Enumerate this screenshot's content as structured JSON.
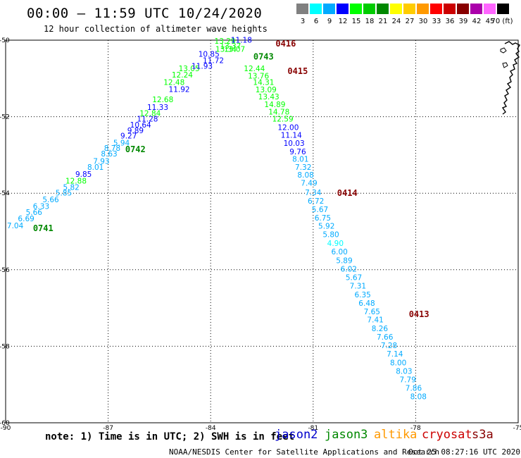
{
  "title": "00:00 – 11:59 UTC 10/24/2020",
  "subtitle": "12 hour collection of altimeter wave heights",
  "scale": {
    "labels": [
      "3",
      "6",
      "9",
      "12",
      "15",
      "18",
      "21",
      "24",
      "27",
      "30",
      "33",
      "36",
      "39",
      "42",
      "45",
      "70 (ft)"
    ],
    "colors": [
      "#808080",
      "#00ffff",
      "#00aaff",
      "#0000ff",
      "#00ff00",
      "#00cc00",
      "#008800",
      "#ffff00",
      "#ffcc00",
      "#ff9900",
      "#ff0000",
      "#cc0000",
      "#880000",
      "#aa00aa",
      "#ff66ff",
      "#000000"
    ]
  },
  "chart_data": {
    "type": "scatter",
    "xlim": [
      -90,
      -75
    ],
    "ylim": [
      -60,
      -50
    ],
    "xticks": [
      -90,
      -87,
      -84,
      -81,
      -78,
      -75
    ],
    "yticks": [
      -50,
      -52,
      -54,
      -56,
      -58,
      -60
    ],
    "grid": true,
    "passes": [
      {
        "label": "0741",
        "color": "#008800",
        "label_lon": -89.2,
        "label_lat": -54.92,
        "points": [
          {
            "lon": -89.72,
            "lat": -54.92,
            "v": "7.04",
            "c": "#00aaff"
          },
          {
            "lon": -89.4,
            "lat": -54.73,
            "v": "6.69",
            "c": "#00aaff"
          },
          {
            "lon": -89.17,
            "lat": -54.57,
            "v": "5.66",
            "c": "#00aaff"
          },
          {
            "lon": -88.96,
            "lat": -54.41,
            "v": "6.33",
            "c": "#00aaff"
          },
          {
            "lon": -88.68,
            "lat": -54.24,
            "v": "5.66",
            "c": "#00aaff"
          },
          {
            "lon": -88.3,
            "lat": -54.06,
            "v": "5.85",
            "c": "#00aaff"
          },
          {
            "lon": -88.08,
            "lat": -53.91,
            "v": "5.82",
            "c": "#00aaff"
          },
          {
            "lon": -87.94,
            "lat": -53.75,
            "v": "12.88",
            "c": "#00ff00"
          },
          {
            "lon": -87.72,
            "lat": -53.57,
            "v": "9.85",
            "c": "#0000ff"
          },
          {
            "lon": -87.37,
            "lat": -53.39,
            "v": "8.01",
            "c": "#00aaff"
          },
          {
            "lon": -87.2,
            "lat": -53.23,
            "v": "7.93",
            "c": "#00aaff"
          },
          {
            "lon": -86.97,
            "lat": -53.04,
            "v": "8.63",
            "c": "#00aaff"
          },
          {
            "lon": -86.88,
            "lat": -52.89,
            "v": "8.78",
            "c": "#00aaff"
          },
          {
            "lon": -86.61,
            "lat": -52.75,
            "v": "5.94",
            "c": "#00aaff"
          },
          {
            "lon": -86.4,
            "lat": -52.57,
            "v": "9.27",
            "c": "#0000ff"
          },
          {
            "lon": -86.2,
            "lat": -52.43,
            "v": "9.89",
            "c": "#0000ff"
          },
          {
            "lon": -86.05,
            "lat": -52.28,
            "v": "10.64",
            "c": "#0000ff"
          },
          {
            "lon": -85.85,
            "lat": -52.13,
            "v": "11.28",
            "c": "#0000ff"
          },
          {
            "lon": -85.77,
            "lat": -51.98,
            "v": "12.84",
            "c": "#00ff00"
          },
          {
            "lon": -85.55,
            "lat": -51.82,
            "v": "11.33",
            "c": "#0000ff"
          },
          {
            "lon": -85.4,
            "lat": -51.62,
            "v": "12.68",
            "c": "#00ff00"
          },
          {
            "lon": -84.92,
            "lat": -51.35,
            "v": "11.92",
            "c": "#0000ff"
          },
          {
            "lon": -85.07,
            "lat": -51.17,
            "v": "12.48",
            "c": "#00ff00"
          },
          {
            "lon": -84.83,
            "lat": -50.98,
            "v": "12.24",
            "c": "#00ff00"
          },
          {
            "lon": -84.63,
            "lat": -50.81,
            "v": "13.05",
            "c": "#00ff00"
          },
          {
            "lon": -84.25,
            "lat": -50.75,
            "v": "11.93",
            "c": "#0000ff"
          },
          {
            "lon": -83.92,
            "lat": -50.6,
            "v": "11.72",
            "c": "#0000ff"
          },
          {
            "lon": -84.05,
            "lat": -50.43,
            "v": "10.85",
            "c": "#0000ff"
          }
        ]
      },
      {
        "label": "0742",
        "color": "#008800",
        "label_lon": -86.5,
        "label_lat": -52.85,
        "points": []
      },
      {
        "label": "0743",
        "color": "#008800",
        "label_lon": -82.75,
        "label_lat": -50.43,
        "points": [
          {
            "lon": -83.58,
            "lat": -50.09,
            "v": "13.29",
            "c": "#00ff00"
          },
          {
            "lon": -83.42,
            "lat": -50.22,
            "v": "13.37",
            "c": "#00ff00"
          },
          {
            "lon": -83.55,
            "lat": -50.3,
            "v": "13.34",
            "c": "#00ff00"
          },
          {
            "lon": -83.3,
            "lat": -50.3,
            "v": "13.07",
            "c": "#00ff00"
          }
        ]
      },
      {
        "label": "0416",
        "color": "#880000",
        "label_lon": -82.1,
        "label_lat": -50.09,
        "points": [
          {
            "lon": -83.1,
            "lat": -50.06,
            "v": "11.18",
            "c": "#0000ff"
          }
        ]
      },
      {
        "label": "0415",
        "color": "#880000",
        "label_lon": -81.75,
        "label_lat": -50.81,
        "points": [
          {
            "lon": -82.72,
            "lat": -50.81,
            "v": "12.44",
            "c": "#00ff00"
          },
          {
            "lon": -82.6,
            "lat": -51.0,
            "v": "13.76",
            "c": "#00ff00"
          },
          {
            "lon": -82.45,
            "lat": -51.17,
            "v": "14.31",
            "c": "#00ff00"
          },
          {
            "lon": -82.38,
            "lat": -51.36,
            "v": "13.09",
            "c": "#00ff00"
          },
          {
            "lon": -82.3,
            "lat": -51.55,
            "v": "13.43",
            "c": "#00ff00"
          },
          {
            "lon": -82.12,
            "lat": -51.75,
            "v": "14.89",
            "c": "#00ff00"
          },
          {
            "lon": -82.0,
            "lat": -51.94,
            "v": "14.78",
            "c": "#00ff00"
          },
          {
            "lon": -81.89,
            "lat": -52.13,
            "v": "12.59",
            "c": "#00ff00"
          },
          {
            "lon": -81.73,
            "lat": -52.35,
            "v": "12.00",
            "c": "#0000ff"
          },
          {
            "lon": -81.64,
            "lat": -52.55,
            "v": "11.14",
            "c": "#0000ff"
          },
          {
            "lon": -81.56,
            "lat": -52.76,
            "v": "10.03",
            "c": "#0000ff"
          },
          {
            "lon": -81.45,
            "lat": -52.98,
            "v": "9.76",
            "c": "#0000ff"
          },
          {
            "lon": -81.37,
            "lat": -53.18,
            "v": "8.01",
            "c": "#00aaff"
          },
          {
            "lon": -81.29,
            "lat": -53.39,
            "v": "7.32",
            "c": "#00aaff"
          },
          {
            "lon": -81.22,
            "lat": -53.59,
            "v": "8.08",
            "c": "#00aaff"
          }
        ]
      },
      {
        "label": "0414",
        "color": "#880000",
        "label_lon": -80.3,
        "label_lat": -54.0,
        "points": [
          {
            "lon": -81.12,
            "lat": -53.8,
            "v": "7.49",
            "c": "#00aaff"
          },
          {
            "lon": -81.0,
            "lat": -54.05,
            "v": "7.34",
            "c": "#00aaff"
          },
          {
            "lon": -80.92,
            "lat": -54.27,
            "v": "6.72",
            "c": "#00aaff"
          },
          {
            "lon": -80.8,
            "lat": -54.49,
            "v": "5.67",
            "c": "#00aaff"
          },
          {
            "lon": -80.72,
            "lat": -54.71,
            "v": "6.75",
            "c": "#00aaff"
          },
          {
            "lon": -80.61,
            "lat": -54.93,
            "v": "5.92",
            "c": "#00aaff"
          },
          {
            "lon": -80.48,
            "lat": -55.15,
            "v": "5.80",
            "c": "#00aaff"
          },
          {
            "lon": -80.35,
            "lat": -55.38,
            "v": "4.90",
            "c": "#00ffff"
          },
          {
            "lon": -80.23,
            "lat": -55.6,
            "v": "6.00",
            "c": "#00aaff"
          },
          {
            "lon": -80.09,
            "lat": -55.83,
            "v": "5.89",
            "c": "#00aaff"
          },
          {
            "lon": -79.96,
            "lat": -56.05,
            "v": "6.02",
            "c": "#00aaff"
          },
          {
            "lon": -79.81,
            "lat": -56.27,
            "v": "5.67",
            "c": "#00aaff"
          },
          {
            "lon": -79.69,
            "lat": -56.49,
            "v": "7.31",
            "c": "#00aaff"
          },
          {
            "lon": -79.55,
            "lat": -56.72,
            "v": "6.35",
            "c": "#00aaff"
          },
          {
            "lon": -79.43,
            "lat": -56.94,
            "v": "6.48",
            "c": "#00aaff"
          },
          {
            "lon": -79.28,
            "lat": -57.16,
            "v": "7.65",
            "c": "#00aaff"
          }
        ]
      },
      {
        "label": "0413",
        "color": "#880000",
        "label_lon": -78.2,
        "label_lat": -57.16,
        "points": [
          {
            "lon": -79.18,
            "lat": -57.38,
            "v": "7.41",
            "c": "#00aaff"
          },
          {
            "lon": -79.05,
            "lat": -57.61,
            "v": "8.26",
            "c": "#00aaff"
          },
          {
            "lon": -78.9,
            "lat": -57.83,
            "v": "7.66",
            "c": "#00aaff"
          },
          {
            "lon": -78.78,
            "lat": -58.05,
            "v": "7.28",
            "c": "#00aaff"
          },
          {
            "lon": -78.61,
            "lat": -58.27,
            "v": "7.14",
            "c": "#00aaff"
          },
          {
            "lon": -78.51,
            "lat": -58.5,
            "v": "8.00",
            "c": "#00aaff"
          },
          {
            "lon": -78.34,
            "lat": -58.72,
            "v": "8.03",
            "c": "#00aaff"
          },
          {
            "lon": -78.23,
            "lat": -58.94,
            "v": "7.79",
            "c": "#00aaff"
          },
          {
            "lon": -78.06,
            "lat": -59.16,
            "v": "7.86",
            "c": "#00aaff"
          },
          {
            "lon": -77.92,
            "lat": -59.38,
            "v": "8.08",
            "c": "#00aaff"
          }
        ]
      }
    ]
  },
  "footer": {
    "note": "note: 1) Time is in UTC; 2) SWH is in feet",
    "satellites": [
      {
        "name": "jason2",
        "color": "#0000cc"
      },
      {
        "name": "jason3",
        "color": "#008800"
      },
      {
        "name": "altika",
        "color": "#ff9900"
      },
      {
        "name": "cryosat",
        "color": "#cc0000"
      },
      {
        "name": "s3a",
        "color": "#880000"
      }
    ],
    "credit": "NOAA/NESDIS Center for Satellite Applications and Research",
    "timestamp": "Oct 25 08:27:16 UTC 2020"
  }
}
